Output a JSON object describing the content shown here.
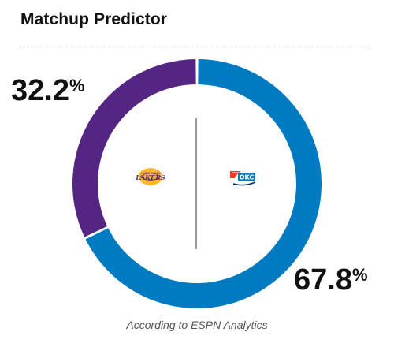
{
  "widget": {
    "title": "Matchup Predictor",
    "footnote": "According to ESPN Analytics"
  },
  "chart_data": {
    "type": "pie",
    "series": [
      {
        "name": "",
        "team_logo": "lakers-logo",
        "value": 32.2,
        "label": "32.2",
        "color": "#552583"
      },
      {
        "name": "",
        "team_logo": "thunder-logo",
        "value": 67.8,
        "label": "67.8",
        "color": "#007ac1"
      }
    ],
    "percent_sign": "%"
  },
  "logos": {
    "away": {
      "icon": "lakers-logo",
      "text": "LAKERS"
    },
    "home": {
      "icon": "thunder-logo",
      "text": "OKC"
    }
  }
}
